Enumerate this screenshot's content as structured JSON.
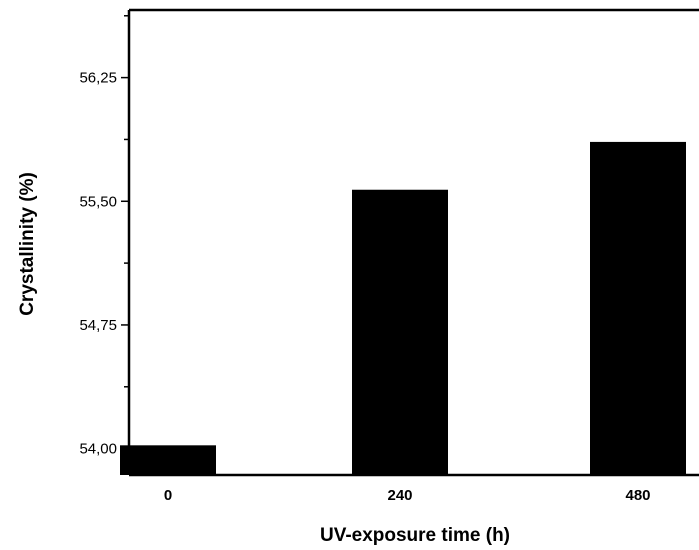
{
  "chart_data": {
    "type": "bar",
    "categories": [
      "0",
      "240",
      "480"
    ],
    "values": [
      54.02,
      55.57,
      55.86
    ],
    "xlabel": "UV-exposure time (h)",
    "ylabel": "Crystallinity (%)",
    "ylim": [
      53.84,
      56.66
    ],
    "yticks": [
      "54,00",
      "54,75",
      "55,50",
      "56,25"
    ],
    "ytick_values": [
      54.0,
      54.75,
      55.5,
      56.25
    ],
    "bar_color": "#000000",
    "grid": false,
    "legend": "none"
  }
}
